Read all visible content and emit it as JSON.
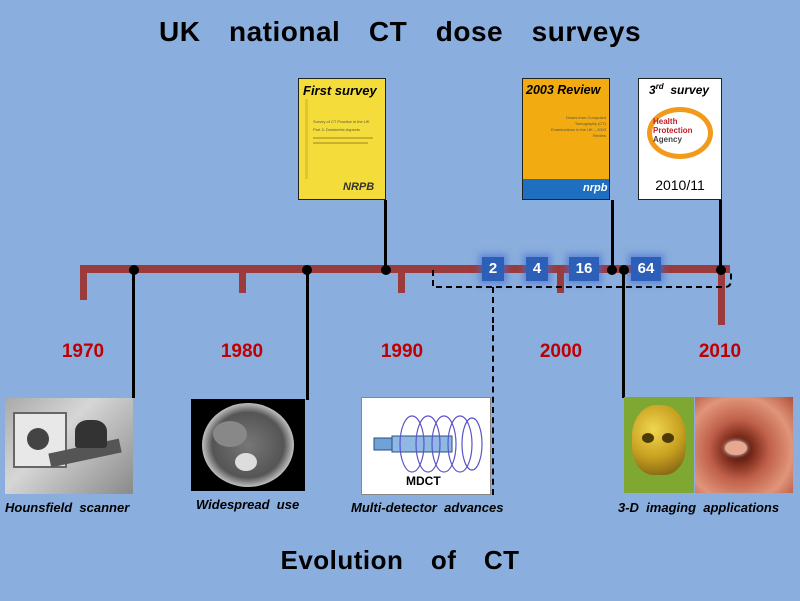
{
  "title": "UK  national  CT  dose  surveys",
  "subtitle": "Evolution  of  CT",
  "decades": [
    "1970",
    "1980",
    "1990",
    "2000",
    "2010"
  ],
  "detector_rows": [
    "2",
    "4",
    "16",
    "64"
  ],
  "surveys": {
    "first": {
      "heading": "First  survey",
      "body_title": "Survey of CT Practice in the UK",
      "body_sub": "Part 3: Dosimetric Aspects",
      "logo": "NRPB"
    },
    "review": {
      "heading": "2003 Review",
      "body_title": "Doses from Computed Tomography (CT) Examinations in the UK – 2003 Review",
      "logo": "nrpb"
    },
    "third": {
      "heading_main": "3",
      "heading_sup": "rd",
      "heading_rest": "  survey",
      "logo_lines": [
        "Health",
        "Protection",
        "Agency"
      ],
      "period": "2010/11"
    }
  },
  "milestones": [
    {
      "caption": "Hounsfield  scanner"
    },
    {
      "caption": "Widespread  use"
    },
    {
      "caption": "Multi-detector  advances",
      "diagram_label": "MDCT"
    },
    {
      "caption": "3-D  imaging  applications"
    }
  ],
  "colors": {
    "background": "#8aaedd",
    "axis": "#9b3b3b",
    "year": "#c00000",
    "badge": "#2c5fb8"
  }
}
